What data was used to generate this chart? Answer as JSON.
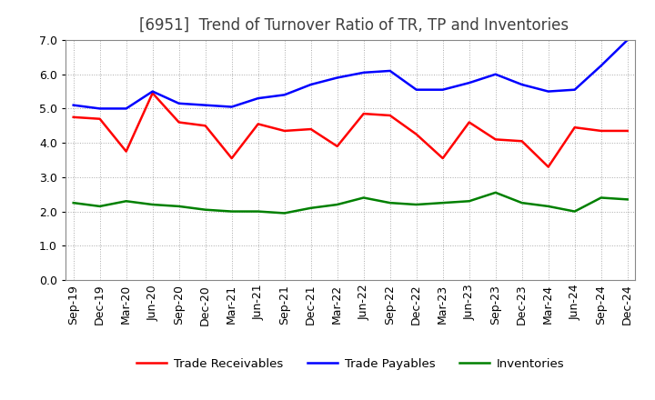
{
  "title": "[6951]  Trend of Turnover Ratio of TR, TP and Inventories",
  "x_labels": [
    "Sep-19",
    "Dec-19",
    "Mar-20",
    "Jun-20",
    "Sep-20",
    "Dec-20",
    "Mar-21",
    "Jun-21",
    "Sep-21",
    "Dec-21",
    "Mar-22",
    "Jun-22",
    "Sep-22",
    "Dec-22",
    "Mar-23",
    "Jun-23",
    "Sep-23",
    "Dec-23",
    "Mar-24",
    "Jun-24",
    "Sep-24",
    "Dec-24"
  ],
  "trade_receivables": [
    4.75,
    4.7,
    3.75,
    5.45,
    4.6,
    4.5,
    3.55,
    4.55,
    4.35,
    4.4,
    3.9,
    4.85,
    4.8,
    4.25,
    3.55,
    4.6,
    4.1,
    4.05,
    3.3,
    4.45,
    4.35,
    4.35
  ],
  "trade_payables": [
    5.1,
    5.0,
    5.0,
    5.5,
    5.15,
    5.1,
    5.05,
    5.3,
    5.4,
    5.7,
    5.9,
    6.05,
    6.1,
    5.55,
    5.55,
    5.75,
    6.0,
    5.7,
    5.5,
    5.55,
    6.25,
    7.0
  ],
  "inventories": [
    2.25,
    2.15,
    2.3,
    2.2,
    2.15,
    2.05,
    2.0,
    2.0,
    1.95,
    2.1,
    2.2,
    2.4,
    2.25,
    2.2,
    2.25,
    2.3,
    2.55,
    2.25,
    2.15,
    2.0,
    2.4,
    2.35
  ],
  "ylim": [
    0.0,
    7.0
  ],
  "yticks": [
    0.0,
    1.0,
    2.0,
    3.0,
    4.0,
    5.0,
    6.0,
    7.0
  ],
  "colors": {
    "trade_receivables": "#ff0000",
    "trade_payables": "#0000ff",
    "inventories": "#008000"
  },
  "legend_labels": [
    "Trade Receivables",
    "Trade Payables",
    "Inventories"
  ],
  "background_color": "#ffffff",
  "plot_bg_color": "#ffffff",
  "grid_color": "#aaaaaa",
  "title_color": "#404040",
  "title_fontsize": 12,
  "tick_fontsize": 9,
  "linewidth": 1.8
}
